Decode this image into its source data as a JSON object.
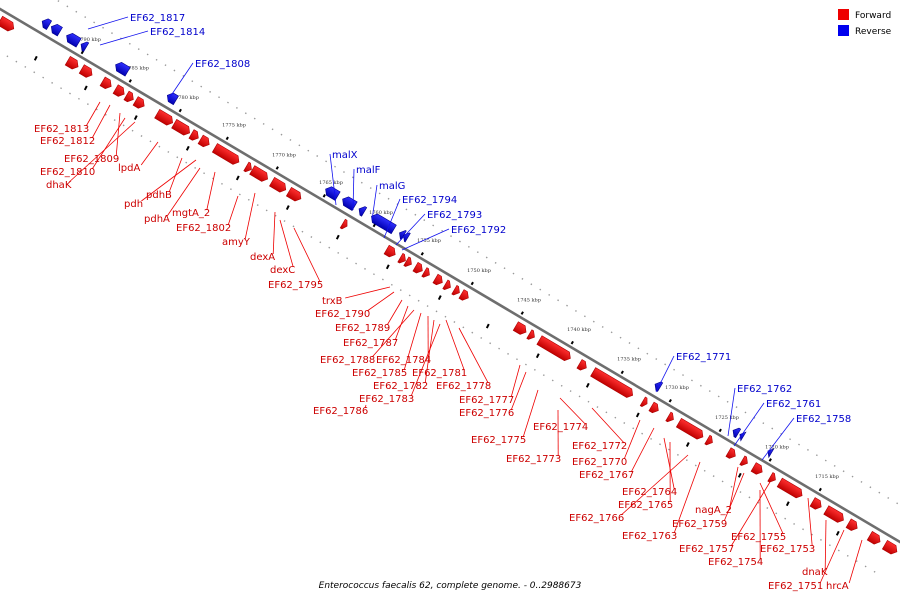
{
  "caption": "Enterococcus faecalis 62, complete genome. - 0..2988673",
  "legend": {
    "forward": {
      "label": "Forward",
      "color": "#ee0000"
    },
    "reverse": {
      "label": "Reverse",
      "color": "#0000ee"
    }
  },
  "colors": {
    "forward": "#ee0000",
    "forward_dark": "#aa0000",
    "reverse": "#1010ee",
    "reverse_dark": "#00008a",
    "axis": "#888888"
  },
  "ticks": [
    "1790 kbp",
    "1785 kbp",
    "1780 kbp",
    "1775 kbp",
    "1770 kbp",
    "1765 kbp",
    "1760 kbp",
    "1755 kbp",
    "1750 kbp",
    "1745 kbp",
    "1740 kbp",
    "1735 kbp",
    "1730 kbp",
    "1725 kbp",
    "1720 kbp",
    "1715 kbp"
  ],
  "labels": [
    {
      "text": "EF62_1817",
      "strand": "reverse"
    },
    {
      "text": "EF62_1814",
      "strand": "reverse"
    },
    {
      "text": "EF62_1808",
      "strand": "reverse"
    },
    {
      "text": "EF62_1813",
      "strand": "forward"
    },
    {
      "text": "EF62_1812",
      "strand": "forward"
    },
    {
      "text": "EF62_1809",
      "strand": "forward"
    },
    {
      "text": "EF62_1810",
      "strand": "forward"
    },
    {
      "text": "dhaK",
      "strand": "forward"
    },
    {
      "text": "lpdA",
      "strand": "forward"
    },
    {
      "text": "pdhB",
      "strand": "forward"
    },
    {
      "text": "pdh",
      "strand": "forward"
    },
    {
      "text": "pdhA",
      "strand": "forward"
    },
    {
      "text": "mgtA_2",
      "strand": "forward"
    },
    {
      "text": "EF62_1802",
      "strand": "forward"
    },
    {
      "text": "amyY",
      "strand": "forward"
    },
    {
      "text": "dexA",
      "strand": "forward"
    },
    {
      "text": "dexC",
      "strand": "forward"
    },
    {
      "text": "EF62_1795",
      "strand": "forward"
    },
    {
      "text": "malX",
      "strand": "reverse"
    },
    {
      "text": "malF",
      "strand": "reverse"
    },
    {
      "text": "malG",
      "strand": "reverse"
    },
    {
      "text": "EF62_1794",
      "strand": "reverse"
    },
    {
      "text": "EF62_1793",
      "strand": "reverse"
    },
    {
      "text": "EF62_1792",
      "strand": "reverse"
    },
    {
      "text": "trxB",
      "strand": "forward"
    },
    {
      "text": "EF62_1790",
      "strand": "forward"
    },
    {
      "text": "EF62_1789",
      "strand": "forward"
    },
    {
      "text": "EF62_1787",
      "strand": "forward"
    },
    {
      "text": "EF62_1788",
      "strand": "forward"
    },
    {
      "text": "EF62_1784",
      "strand": "forward"
    },
    {
      "text": "EF62_1785",
      "strand": "forward"
    },
    {
      "text": "EF62_1781",
      "strand": "forward"
    },
    {
      "text": "EF62_1782",
      "strand": "forward"
    },
    {
      "text": "EF62_1778",
      "strand": "forward"
    },
    {
      "text": "EF62_1783",
      "strand": "forward"
    },
    {
      "text": "EF62_1777",
      "strand": "forward"
    },
    {
      "text": "EF62_1786",
      "strand": "forward"
    },
    {
      "text": "EF62_1776",
      "strand": "forward"
    },
    {
      "text": "EF62_1774",
      "strand": "forward"
    },
    {
      "text": "EF62_1775",
      "strand": "forward"
    },
    {
      "text": "EF62_1772",
      "strand": "forward"
    },
    {
      "text": "EF62_1773",
      "strand": "forward"
    },
    {
      "text": "EF62_1770",
      "strand": "forward"
    },
    {
      "text": "EF62_1767",
      "strand": "forward"
    },
    {
      "text": "EF62_1771",
      "strand": "reverse"
    },
    {
      "text": "EF62_1762",
      "strand": "reverse"
    },
    {
      "text": "EF62_1761",
      "strand": "reverse"
    },
    {
      "text": "EF62_1758",
      "strand": "reverse"
    },
    {
      "text": "EF62_1764",
      "strand": "forward"
    },
    {
      "text": "EF62_1765",
      "strand": "forward"
    },
    {
      "text": "EF62_1766",
      "strand": "forward"
    },
    {
      "text": "nagA_2",
      "strand": "forward"
    },
    {
      "text": "EF62_1759",
      "strand": "forward"
    },
    {
      "text": "EF62_1763",
      "strand": "forward"
    },
    {
      "text": "EF62_1755",
      "strand": "forward"
    },
    {
      "text": "EF62_1757",
      "strand": "forward"
    },
    {
      "text": "EF62_1754",
      "strand": "forward"
    },
    {
      "text": "EF62_1753",
      "strand": "forward"
    },
    {
      "text": "dnaK",
      "strand": "forward"
    },
    {
      "text": "EF62_1751",
      "strand": "forward"
    },
    {
      "text": "hrcA",
      "strand": "forward"
    }
  ]
}
